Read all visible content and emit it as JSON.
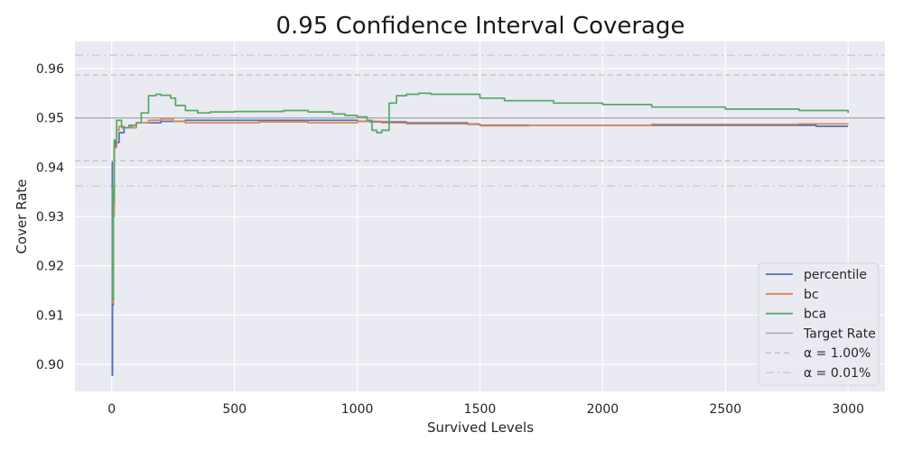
{
  "chart_data": {
    "type": "line",
    "title": "0.95 Confidence Interval Coverage",
    "xlabel": "Survived Levels",
    "ylabel": "Cover Rate",
    "xlim": [
      -150,
      3150
    ],
    "ylim": [
      0.8945,
      0.9655
    ],
    "xticks": [
      0,
      500,
      1000,
      1500,
      2000,
      2500,
      3000
    ],
    "xtick_labels": [
      "0",
      "500",
      "1000",
      "1500",
      "2000",
      "2500",
      "3000"
    ],
    "yticks": [
      0.9,
      0.91,
      0.92,
      0.93,
      0.94,
      0.95,
      0.96
    ],
    "ytick_labels": [
      "0.90",
      "0.91",
      "0.92",
      "0.93",
      "0.94",
      "0.95",
      "0.96"
    ],
    "grid": true,
    "legend_position": "lower-right",
    "series": [
      {
        "name": "percentile",
        "color": "#4c72b0",
        "points": [
          [
            1,
            0.941
          ],
          [
            2,
            0.8978
          ],
          [
            3,
            0.912
          ],
          [
            6,
            0.935
          ],
          [
            10,
            0.944
          ],
          [
            15,
            0.9455
          ],
          [
            20,
            0.945
          ],
          [
            30,
            0.947
          ],
          [
            50,
            0.948
          ],
          [
            80,
            0.9485
          ],
          [
            100,
            0.949
          ],
          [
            150,
            0.949
          ],
          [
            200,
            0.9493
          ],
          [
            300,
            0.9495
          ],
          [
            500,
            0.9495
          ],
          [
            700,
            0.9495
          ],
          [
            1000,
            0.9493
          ],
          [
            1050,
            0.9492
          ],
          [
            1200,
            0.949
          ],
          [
            1440,
            0.949
          ],
          [
            1450,
            0.9487
          ],
          [
            1500,
            0.9485
          ],
          [
            1700,
            0.9485
          ],
          [
            2000,
            0.9485
          ],
          [
            2500,
            0.9485
          ],
          [
            2850,
            0.9485
          ],
          [
            2870,
            0.9483
          ],
          [
            3000,
            0.9483
          ]
        ]
      },
      {
        "name": "bc",
        "color": "#dd8452",
        "points": [
          [
            1,
            0.93
          ],
          [
            3,
            0.9125
          ],
          [
            6,
            0.93
          ],
          [
            10,
            0.944
          ],
          [
            20,
            0.9475
          ],
          [
            30,
            0.9483
          ],
          [
            50,
            0.948
          ],
          [
            100,
            0.949
          ],
          [
            150,
            0.9495
          ],
          [
            200,
            0.9498
          ],
          [
            250,
            0.9493
          ],
          [
            300,
            0.949
          ],
          [
            400,
            0.949
          ],
          [
            500,
            0.949
          ],
          [
            600,
            0.9492
          ],
          [
            800,
            0.949
          ],
          [
            1000,
            0.9493
          ],
          [
            1100,
            0.949
          ],
          [
            1200,
            0.9488
          ],
          [
            1400,
            0.9488
          ],
          [
            1500,
            0.9484
          ],
          [
            1700,
            0.9485
          ],
          [
            2000,
            0.9485
          ],
          [
            2200,
            0.9487
          ],
          [
            2500,
            0.9487
          ],
          [
            2800,
            0.9488
          ],
          [
            3000,
            0.9489
          ]
        ]
      },
      {
        "name": "bca",
        "color": "#55a868",
        "points": [
          [
            1,
            0.936
          ],
          [
            3,
            0.913
          ],
          [
            6,
            0.933
          ],
          [
            10,
            0.9455
          ],
          [
            20,
            0.9495
          ],
          [
            40,
            0.948
          ],
          [
            70,
            0.9485
          ],
          [
            100,
            0.949
          ],
          [
            120,
            0.951
          ],
          [
            150,
            0.9545
          ],
          [
            180,
            0.9548
          ],
          [
            200,
            0.9546
          ],
          [
            240,
            0.954
          ],
          [
            260,
            0.9525
          ],
          [
            300,
            0.9515
          ],
          [
            350,
            0.951
          ],
          [
            400,
            0.9512
          ],
          [
            500,
            0.9513
          ],
          [
            650,
            0.9513
          ],
          [
            700,
            0.9515
          ],
          [
            800,
            0.9512
          ],
          [
            900,
            0.9508
          ],
          [
            950,
            0.9505
          ],
          [
            1000,
            0.9502
          ],
          [
            1040,
            0.9495
          ],
          [
            1060,
            0.9475
          ],
          [
            1080,
            0.947
          ],
          [
            1100,
            0.9475
          ],
          [
            1130,
            0.953
          ],
          [
            1160,
            0.9545
          ],
          [
            1200,
            0.9548
          ],
          [
            1250,
            0.955
          ],
          [
            1300,
            0.9548
          ],
          [
            1400,
            0.9548
          ],
          [
            1500,
            0.954
          ],
          [
            1600,
            0.9535
          ],
          [
            1800,
            0.953
          ],
          [
            2000,
            0.9527
          ],
          [
            2200,
            0.9522
          ],
          [
            2500,
            0.9518
          ],
          [
            2800,
            0.9515
          ],
          [
            3000,
            0.951
          ]
        ]
      }
    ],
    "reference_lines": [
      {
        "name": "Target Rate",
        "y": 0.95,
        "color": "#b0b0b0",
        "style": "solid"
      },
      {
        "name": "α = 1.00%",
        "y_values": [
          0.9587,
          0.9413
        ],
        "color": "#c8c8c8",
        "style": "dashed"
      },
      {
        "name": "α = 0.01%",
        "y_values": [
          0.9627,
          0.9362
        ],
        "color": "#d0d0d0",
        "style": "dashdot"
      }
    ]
  }
}
